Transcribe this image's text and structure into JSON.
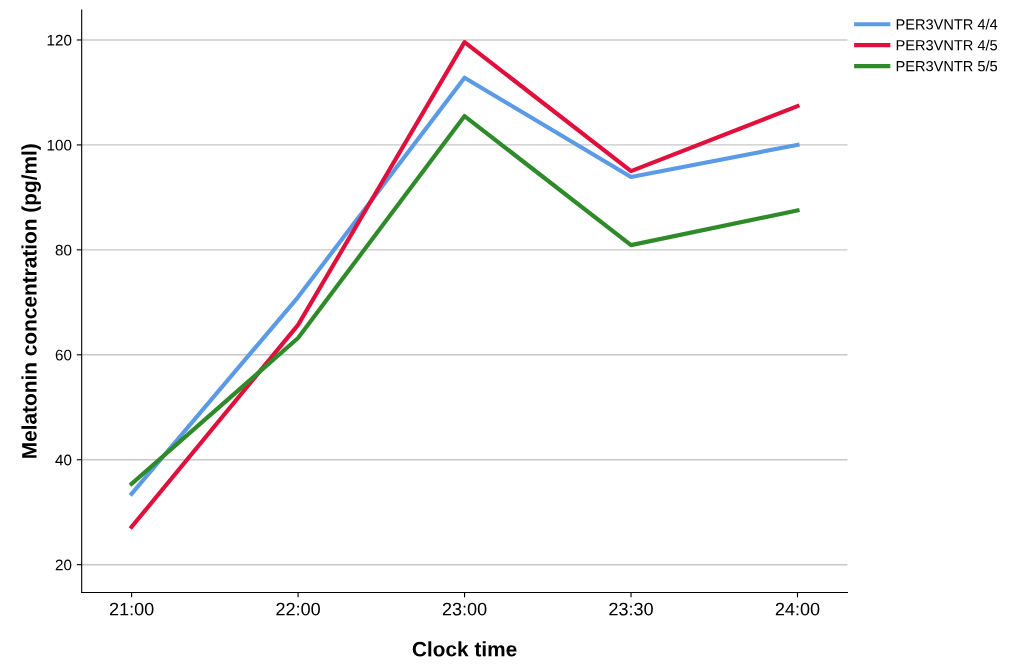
{
  "chart_data": {
    "type": "line",
    "xlabel": "Clock time",
    "ylabel": "Melatonin concentration (pg/ml)",
    "categories": [
      "21:00",
      "22:00",
      "23:00",
      "23:30",
      "24:00"
    ],
    "series": [
      {
        "name": "PER3VNTR 4/4",
        "color": "#5b9be6",
        "values": [
          33.5,
          71.0,
          112.8,
          93.9,
          100.0
        ]
      },
      {
        "name": "PER3VNTR 4/5",
        "color": "#e0103c",
        "values": [
          27.2,
          65.7,
          119.6,
          95.0,
          107.4
        ]
      },
      {
        "name": "PER3VNTR 5/5",
        "color": "#2f8a2a",
        "values": [
          35.4,
          63.2,
          105.5,
          80.9,
          87.5
        ]
      }
    ],
    "ylim": [
      14.7,
      125.7
    ],
    "yticks": [
      20,
      40,
      60,
      80,
      100,
      120
    ],
    "grid": "y",
    "legend": "top right",
    "marker": "none",
    "line_style": "solid"
  }
}
